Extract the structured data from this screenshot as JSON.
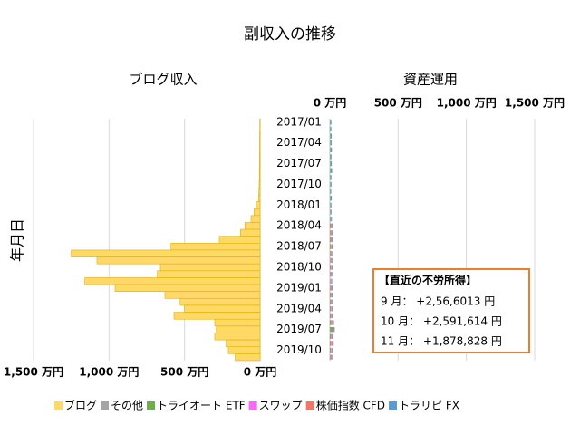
{
  "chart_data": [
    {
      "type": "hbar_left",
      "title": "副収入の推移",
      "panel_title": "ブログ収入",
      "ylabel": "年月日",
      "categories": [
        "2017/01",
        null,
        null,
        "2017/04",
        null,
        null,
        "2017/07",
        null,
        null,
        "2017/10",
        null,
        null,
        "2018/01",
        null,
        null,
        "2018/04",
        null,
        null,
        "2018/07",
        null,
        null,
        "2018/10",
        null,
        null,
        "2019/01",
        null,
        null,
        "2019/04",
        null,
        null,
        "2019/07",
        null,
        null,
        "2019/10",
        null
      ],
      "series": [
        {
          "name": "ブログ",
          "color": "#ffd966",
          "values": [
            2,
            2,
            3,
            3,
            3,
            4,
            4,
            5,
            5,
            6,
            8,
            10,
            25,
            40,
            60,
            100,
            130,
            270,
            590,
            1250,
            1080,
            660,
            680,
            1160,
            960,
            630,
            530,
            500,
            570,
            300,
            290,
            300,
            225,
            210,
            165
          ]
        }
      ],
      "xlim": [
        0,
        1500
      ],
      "xticks": [
        {
          "value": 1500,
          "label": "1,500 万円"
        },
        {
          "value": 1000,
          "label": "1,000 万円"
        },
        {
          "value": 500,
          "label": "500 万円"
        },
        {
          "value": 0,
          "label": "0 万円"
        }
      ],
      "grid": true
    },
    {
      "type": "hbar_stacked",
      "panel_title": "資産運用",
      "series": [
        {
          "name": "その他",
          "color": "#a5a5a5",
          "values": [
            1,
            1,
            1,
            1,
            1,
            1,
            1,
            1,
            1,
            1,
            1,
            1,
            1,
            1,
            1,
            1,
            1,
            1,
            1,
            1,
            1,
            1,
            1,
            1,
            1,
            1,
            1,
            1,
            1,
            1,
            1,
            1,
            1,
            1,
            1
          ]
        },
        {
          "name": "トライオート ETF",
          "color": "#70ad47",
          "values": [
            3,
            3,
            4,
            4,
            4,
            5,
            4,
            5,
            3,
            4,
            3,
            5,
            4,
            3,
            5,
            6,
            5,
            6,
            8,
            5,
            4,
            6,
            5,
            4,
            5,
            6,
            8,
            7,
            6,
            10,
            20,
            8,
            6,
            7,
            5
          ]
        },
        {
          "name": "スワップ",
          "color": "#ff66ff",
          "values": [
            0,
            0,
            0,
            0,
            0,
            0,
            0,
            0,
            0,
            0,
            0,
            0,
            2,
            2,
            2,
            3,
            3,
            3,
            3,
            3,
            4,
            4,
            4,
            4,
            4,
            4,
            4,
            4,
            4,
            4,
            4,
            4,
            4,
            4,
            4
          ]
        },
        {
          "name": "株価指数 CFD",
          "color": "#f4736b",
          "values": [
            0,
            0,
            0,
            0,
            0,
            0,
            0,
            0,
            0,
            0,
            0,
            0,
            0,
            0,
            0,
            5,
            8,
            6,
            10,
            4,
            6,
            5,
            3,
            4,
            6,
            3,
            5,
            8,
            6,
            10,
            5,
            8,
            12,
            6,
            5
          ]
        },
        {
          "name": "トラリピ FX",
          "color": "#5b9bd5",
          "values": [
            8,
            7,
            9,
            8,
            10,
            6,
            9,
            11,
            8,
            7,
            6,
            8,
            5,
            6,
            7,
            5,
            6,
            6,
            5,
            5,
            6,
            5,
            5,
            4,
            5,
            6,
            5,
            5,
            6,
            5,
            6,
            6,
            5,
            5,
            4
          ]
        }
      ],
      "xlim": [
        0,
        1500
      ],
      "xticks": [
        {
          "value": 0,
          "label": "0 万円"
        },
        {
          "value": 500,
          "label": "500 万円"
        },
        {
          "value": 1000,
          "label": "1,000 万円"
        },
        {
          "value": 1500,
          "label": "1,500 万円"
        }
      ],
      "grid": true,
      "annotation": {
        "title": "【直近の不労所得】",
        "lines": [
          "9 月： +2,56,6013 円",
          "10 月： +2,591,614 円",
          "11 月： +1,878,828 円"
        ]
      }
    }
  ]
}
